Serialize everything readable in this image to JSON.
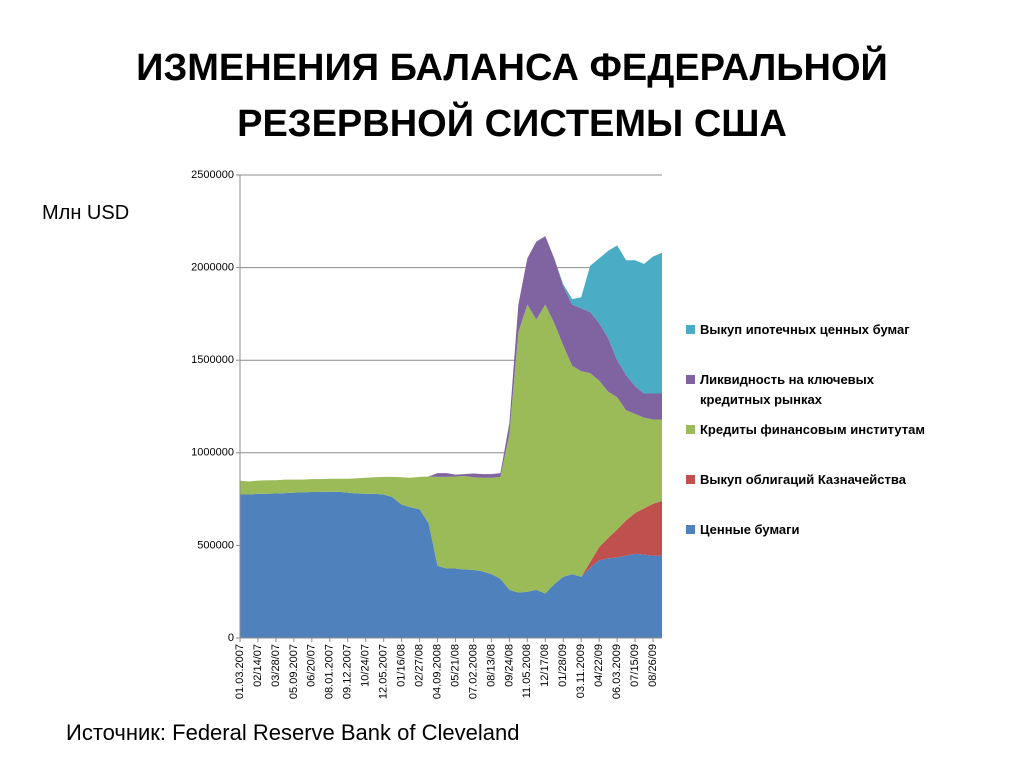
{
  "chart_data": {
    "type": "area",
    "title": "ИЗМЕНЕНИЯ БАЛАНСА ФЕДЕРАЛЬНОЙ РЕЗЕРВНОЙ СИСТЕМЫ США",
    "y_label": "Млн USD",
    "source": "Источник: Federal Reserve Bank of Cleveland",
    "stacked": true,
    "grid": true,
    "ylim": [
      0,
      2500000
    ],
    "yticks": [
      0,
      500000,
      1000000,
      1500000,
      2000000,
      2500000
    ],
    "categories": [
      "01.03.2007",
      null,
      "02/14/07",
      null,
      "03/28/07",
      null,
      "05.09.2007",
      null,
      "06/20/07",
      null,
      "08.01.2007",
      null,
      "09.12.2007",
      null,
      "10/24/07",
      null,
      "12.05.2007",
      null,
      "01/16/08",
      null,
      "02/27/08",
      null,
      "04.09.2008",
      null,
      "05/21/08",
      null,
      "07.02.2008",
      null,
      "08/13/08",
      null,
      "09/24/08",
      null,
      "11.05.2008",
      null,
      "12/17/08",
      null,
      "01/28/09",
      null,
      "03.11.2009",
      null,
      "04/22/09",
      null,
      "06.03.2009",
      null,
      "07/15/09",
      null,
      "08/26/09",
      null
    ],
    "series": [
      {
        "name": "Ценные бумаги",
        "color": "#4f81bd",
        "values": [
          775000,
          775000,
          778000,
          779000,
          780000,
          782000,
          785000,
          786000,
          788000,
          789000,
          790000,
          790000,
          785000,
          780000,
          779000,
          778000,
          775000,
          760000,
          720000,
          705000,
          695000,
          620000,
          390000,
          375000,
          375000,
          370000,
          368000,
          360000,
          345000,
          320000,
          260000,
          245000,
          250000,
          260000,
          240000,
          290000,
          330000,
          345000,
          330000,
          380000,
          420000,
          430000,
          435000,
          445000,
          455000,
          450000,
          445000,
          445000
        ]
      },
      {
        "name": "Выкуп облигаций Казначейства",
        "color": "#c0504d",
        "values": [
          0,
          0,
          0,
          0,
          0,
          0,
          0,
          0,
          0,
          0,
          0,
          0,
          0,
          0,
          0,
          0,
          0,
          0,
          0,
          0,
          0,
          0,
          0,
          0,
          0,
          0,
          0,
          0,
          0,
          0,
          0,
          0,
          0,
          0,
          0,
          0,
          0,
          0,
          0,
          30000,
          70000,
          110000,
          150000,
          190000,
          220000,
          250000,
          280000,
          295000
        ]
      },
      {
        "name": "Кредиты финансовым институтам",
        "color": "#9bbb59",
        "values": [
          75000,
          70000,
          72000,
          73000,
          72000,
          73000,
          70000,
          69000,
          70000,
          69000,
          70000,
          70000,
          75000,
          82000,
          86000,
          90000,
          95000,
          110000,
          148000,
          160000,
          175000,
          252000,
          480000,
          495000,
          497000,
          505000,
          500000,
          505000,
          520000,
          550000,
          840000,
          1405000,
          1550000,
          1460000,
          1560000,
          1410000,
          1250000,
          1125000,
          1110000,
          1020000,
          900000,
          790000,
          715000,
          595000,
          535000,
          490000,
          455000,
          440000
        ]
      },
      {
        "name": "Ликвидность на ключевых кредитных рынках",
        "color": "#8064a2",
        "values": [
          0,
          0,
          0,
          0,
          0,
          0,
          0,
          0,
          0,
          0,
          0,
          0,
          0,
          0,
          0,
          0,
          0,
          0,
          0,
          0,
          0,
          0,
          20000,
          20000,
          10000,
          10000,
          20000,
          20000,
          20000,
          20000,
          60000,
          150000,
          250000,
          420000,
          370000,
          350000,
          320000,
          330000,
          340000,
          330000,
          310000,
          290000,
          200000,
          190000,
          150000,
          130000,
          140000,
          140000
        ]
      },
      {
        "name": "Выкуп ипотечных ценных бумаг",
        "color": "#4bacc6",
        "values": [
          0,
          0,
          0,
          0,
          0,
          0,
          0,
          0,
          0,
          0,
          0,
          0,
          0,
          0,
          0,
          0,
          0,
          0,
          0,
          0,
          0,
          0,
          0,
          0,
          0,
          0,
          0,
          0,
          0,
          0,
          0,
          0,
          0,
          0,
          0,
          0,
          10000,
          30000,
          60000,
          250000,
          350000,
          470000,
          620000,
          620000,
          680000,
          700000,
          740000,
          760000
        ]
      }
    ]
  }
}
